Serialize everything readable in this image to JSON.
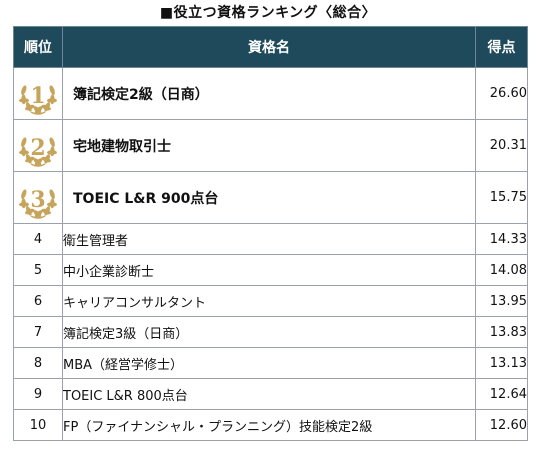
{
  "title": "■役立つ資格ランキング〈総合〉",
  "headers": {
    "rank": "順位",
    "name": "資格名",
    "score": "得点"
  },
  "colors": {
    "header_bg": "#1f4a5b",
    "medal_gold": "#c6a45b"
  },
  "rows": [
    {
      "rank": "1",
      "name": "簿記検定2級（日商）",
      "score": "26.60",
      "medal": true
    },
    {
      "rank": "2",
      "name": "宅地建物取引士",
      "score": "20.31",
      "medal": true
    },
    {
      "rank": "3",
      "name": "TOEIC L&R 900点台",
      "score": "15.75",
      "medal": true
    },
    {
      "rank": "4",
      "name": "衛生管理者",
      "score": "14.33"
    },
    {
      "rank": "5",
      "name": "中小企業診断士",
      "score": "14.08"
    },
    {
      "rank": "6",
      "name": "キャリアコンサルタント",
      "score": "13.95"
    },
    {
      "rank": "7",
      "name": "簿記検定3級（日商）",
      "score": "13.83"
    },
    {
      "rank": "8",
      "name": "MBA（経営学修士）",
      "score": "13.13"
    },
    {
      "rank": "9",
      "name": "TOEIC L&R 800点台",
      "score": "12.64"
    },
    {
      "rank": "10",
      "name": "FP（ファイナンシャル・プランニング）技能検定2級",
      "score": "12.60"
    }
  ]
}
